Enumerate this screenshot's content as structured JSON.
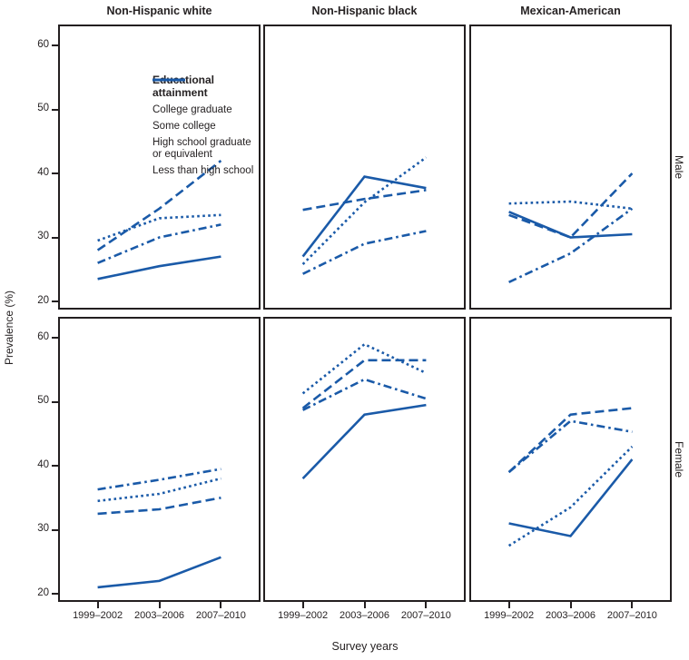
{
  "colors": {
    "line": "#1a5aa8",
    "frame": "#231f20",
    "text": "#262223"
  },
  "chart_data": {
    "type": "line",
    "facet_columns": [
      "Non-Hispanic white",
      "Non-Hispanic black",
      "Mexican-American"
    ],
    "facet_rows": [
      "Male",
      "Female"
    ],
    "x_categories": [
      "1999–2002",
      "2003–2006",
      "2007–2010"
    ],
    "x_label": "Survey years",
    "y_label": "Prevalence (%)",
    "ylim": [
      19,
      63
    ],
    "y_ticks": [
      60,
      50,
      40,
      30,
      20
    ],
    "grid": false,
    "legend": {
      "title": "Educational attainment",
      "position": "top-left panel, inside",
      "entries": [
        {
          "name": "College graduate",
          "style": "solid"
        },
        {
          "name": "Some college",
          "style": "dashed"
        },
        {
          "name": "High school graduate or equivalent",
          "style": "dotted"
        },
        {
          "name": "Less than high school",
          "style": "dashdot"
        }
      ]
    },
    "panels": [
      {
        "row": "Male",
        "column": "Non-Hispanic white",
        "series": [
          {
            "name": "College graduate",
            "style": "solid",
            "values": [
              23.5,
              25.5,
              27.0
            ]
          },
          {
            "name": "Some college",
            "style": "dashed",
            "values": [
              28.0,
              34.5,
              42.0
            ]
          },
          {
            "name": "High school graduate or equivalent",
            "style": "dotted",
            "values": [
              29.5,
              33.0,
              33.5
            ]
          },
          {
            "name": "Less than high school",
            "style": "dashdot",
            "values": [
              26.0,
              30.0,
              32.0
            ]
          }
        ]
      },
      {
        "row": "Male",
        "column": "Non-Hispanic black",
        "series": [
          {
            "name": "College graduate",
            "style": "solid",
            "values": [
              27.0,
              39.5,
              37.7
            ]
          },
          {
            "name": "Some college",
            "style": "dashed",
            "values": [
              34.3,
              36.0,
              37.4
            ]
          },
          {
            "name": "High school graduate or equivalent",
            "style": "dotted",
            "values": [
              25.8,
              35.5,
              42.5
            ]
          },
          {
            "name": "Less than high school",
            "style": "dashdot",
            "values": [
              24.3,
              29.0,
              31.0
            ]
          }
        ]
      },
      {
        "row": "Male",
        "column": "Mexican-American",
        "series": [
          {
            "name": "College graduate",
            "style": "solid",
            "values": [
              34.0,
              30.0,
              30.5
            ]
          },
          {
            "name": "Some college",
            "style": "dashed",
            "values": [
              33.5,
              30.0,
              40.0
            ]
          },
          {
            "name": "High school graduate or equivalent",
            "style": "dotted",
            "values": [
              35.3,
              35.6,
              34.5
            ]
          },
          {
            "name": "Less than high school",
            "style": "dashdot",
            "values": [
              23.0,
              27.5,
              34.5
            ]
          }
        ]
      },
      {
        "row": "Female",
        "column": "Non-Hispanic white",
        "series": [
          {
            "name": "College graduate",
            "style": "solid",
            "values": [
              21.0,
              22.0,
              25.7
            ]
          },
          {
            "name": "Some college",
            "style": "dashed",
            "values": [
              32.5,
              33.2,
              35.0
            ]
          },
          {
            "name": "High school graduate or equivalent",
            "style": "dotted",
            "values": [
              34.5,
              35.6,
              38.0
            ]
          },
          {
            "name": "Less than high school",
            "style": "dashdot",
            "values": [
              36.3,
              37.8,
              39.5
            ]
          }
        ]
      },
      {
        "row": "Female",
        "column": "Non-Hispanic black",
        "series": [
          {
            "name": "College graduate",
            "style": "solid",
            "values": [
              38.0,
              48.0,
              49.5
            ]
          },
          {
            "name": "Some college",
            "style": "dashed",
            "values": [
              49.0,
              56.5,
              56.5
            ]
          },
          {
            "name": "High school graduate or equivalent",
            "style": "dotted",
            "values": [
              51.3,
              59.0,
              54.5
            ]
          },
          {
            "name": "Less than high school",
            "style": "dashdot",
            "values": [
              48.7,
              53.5,
              50.5
            ]
          }
        ]
      },
      {
        "row": "Female",
        "column": "Mexican-American",
        "series": [
          {
            "name": "College graduate",
            "style": "solid",
            "values": [
              31.0,
              29.0,
              41.0
            ]
          },
          {
            "name": "Some college",
            "style": "dashed",
            "values": [
              39.0,
              48.0,
              49.0
            ]
          },
          {
            "name": "High school graduate or equivalent",
            "style": "dotted",
            "values": [
              27.5,
              33.5,
              43.0
            ]
          },
          {
            "name": "Less than high school",
            "style": "dashdot",
            "values": [
              39.0,
              47.0,
              45.3
            ]
          }
        ]
      }
    ]
  }
}
